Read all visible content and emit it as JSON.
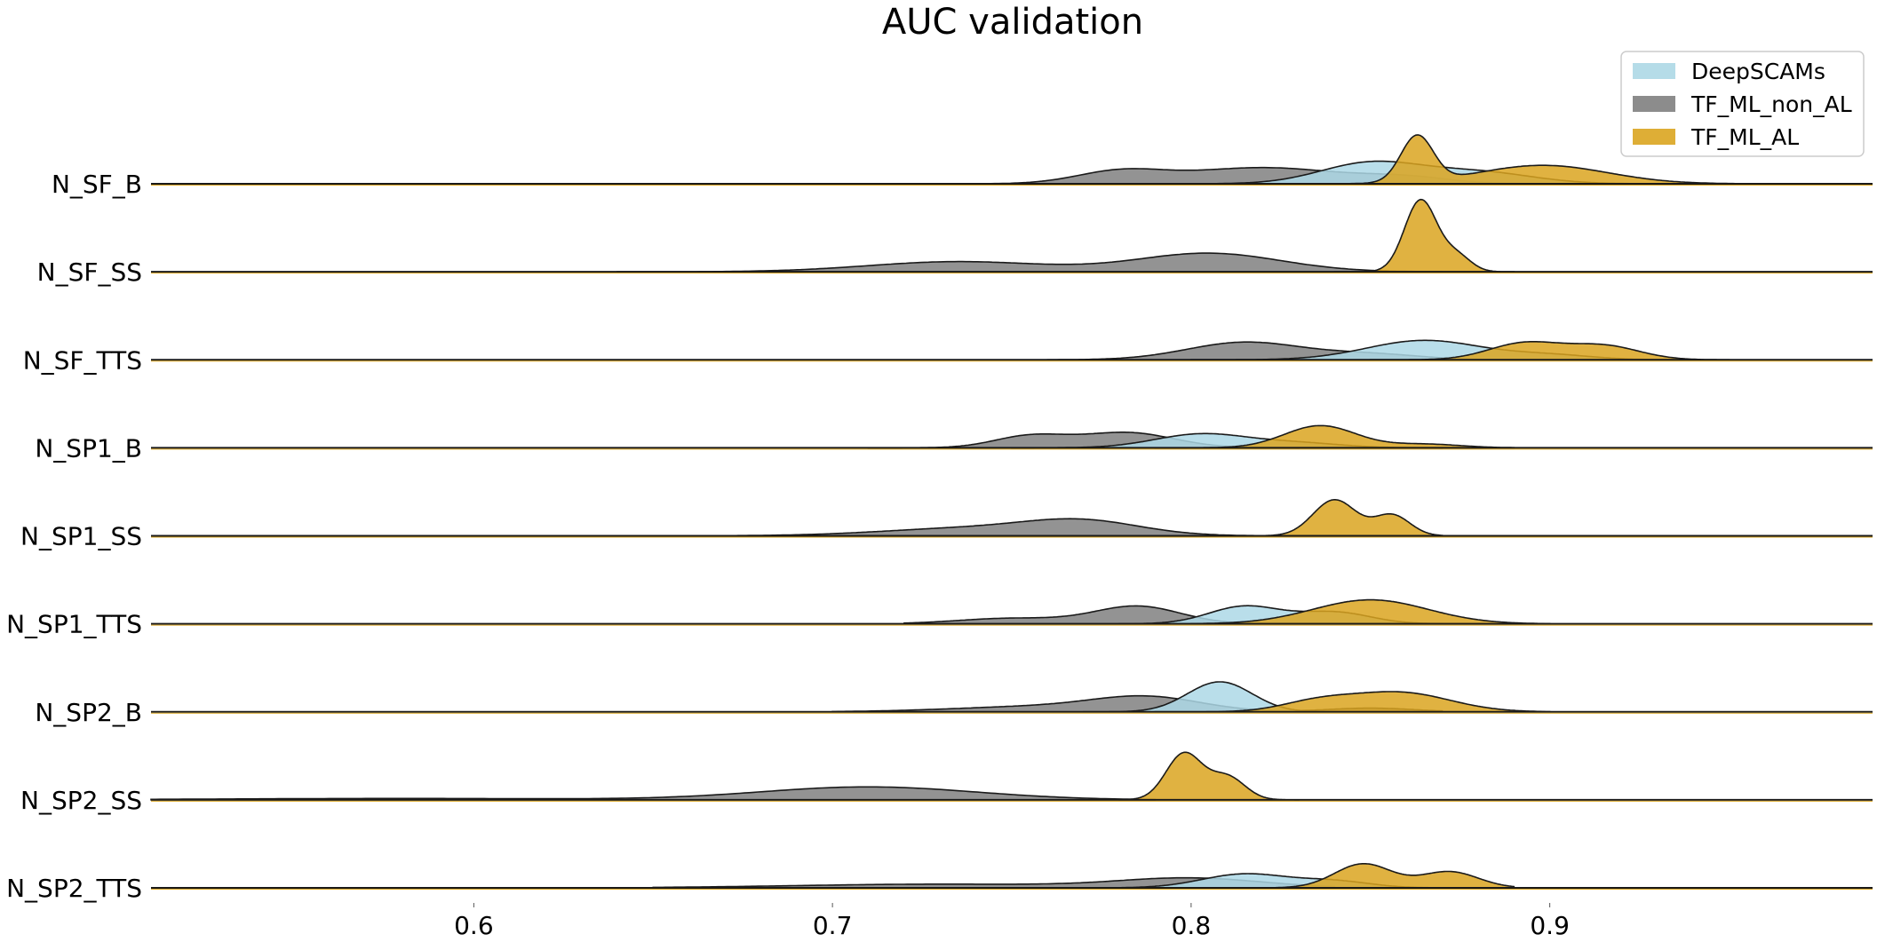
{
  "chart_data": {
    "type": "area",
    "title": "AUC validation",
    "xlabel": "",
    "ylabel": "",
    "xlim": [
      0.51,
      0.99
    ],
    "x_ticks": [
      0.6,
      0.7,
      0.8,
      0.9
    ],
    "x_tick_labels": [
      "0.6",
      "0.7",
      "0.8",
      "0.9"
    ],
    "grid": false,
    "legend_position": "top-right",
    "categories": [
      "N_SF_B",
      "N_SF_SS",
      "N_SF_TTS",
      "N_SP1_B",
      "N_SP1_SS",
      "N_SP1_TTS",
      "N_SP2_B",
      "N_SP2_SS",
      "N_SP2_TTS"
    ],
    "series": [
      {
        "name": "DeepSCAMs",
        "color": "#ADD8E6"
      },
      {
        "name": "TF_ML_non_AL",
        "color": "#808080"
      },
      {
        "name": "TF_ML_AL",
        "color": "#DAA520"
      }
    ],
    "ridges": [
      {
        "category": "N_SF_B",
        "densities": [
          {
            "series": "TF_ML_non_AL",
            "peaks": [
              [
                0.78,
                0.012,
                0.25
              ],
              [
                0.82,
                0.022,
                0.35
              ],
              [
                0.86,
                0.012,
                0.12
              ]
            ],
            "range": [
              0.67,
              0.91
            ]
          },
          {
            "series": "DeepSCAMs",
            "peaks": [
              [
                0.85,
                0.014,
                0.45
              ],
              [
                0.88,
                0.015,
                0.25
              ]
            ],
            "range": [
              0.76,
              0.93
            ]
          },
          {
            "series": "TF_ML_AL",
            "peaks": [
              [
                0.863,
                0.0045,
                1.0
              ],
              [
                0.898,
                0.018,
                0.4
              ]
            ],
            "range": [
              0.82,
              0.96
            ]
          }
        ]
      },
      {
        "category": "N_SF_SS",
        "densities": [
          {
            "series": "TF_ML_non_AL",
            "peaks": [
              [
                0.735,
                0.025,
                0.22
              ],
              [
                0.805,
                0.02,
                0.4
              ]
            ],
            "range": [
              0.64,
              0.87
            ]
          },
          {
            "series": "TF_ML_AL",
            "peaks": [
              [
                0.864,
                0.0045,
                1.55
              ],
              [
                0.874,
                0.004,
                0.35
              ]
            ],
            "range": [
              0.84,
              0.89
            ]
          }
        ]
      },
      {
        "category": "N_SF_TTS",
        "densities": [
          {
            "series": "TF_ML_non_AL",
            "peaks": [
              [
                0.815,
                0.016,
                0.38
              ],
              [
                0.85,
                0.014,
                0.12
              ]
            ],
            "range": [
              0.76,
              0.9
            ]
          },
          {
            "series": "DeepSCAMs",
            "peaks": [
              [
                0.865,
                0.016,
                0.42
              ],
              [
                0.9,
                0.012,
                0.1
              ]
            ],
            "range": [
              0.8,
              0.94
            ]
          },
          {
            "series": "TF_ML_AL",
            "peaks": [
              [
                0.893,
                0.01,
                0.36
              ],
              [
                0.915,
                0.01,
                0.3
              ]
            ],
            "range": [
              0.85,
              0.95
            ]
          }
        ]
      },
      {
        "category": "N_SP1_B",
        "densities": [
          {
            "series": "TF_ML_non_AL",
            "peaks": [
              [
                0.755,
                0.01,
                0.25
              ],
              [
                0.782,
                0.013,
                0.33
              ]
            ],
            "range": [
              0.71,
              0.83
            ]
          },
          {
            "series": "DeepSCAMs",
            "peaks": [
              [
                0.803,
                0.013,
                0.3
              ],
              [
                0.83,
                0.012,
                0.1
              ]
            ],
            "range": [
              0.75,
              0.87
            ]
          },
          {
            "series": "TF_ML_AL",
            "peaks": [
              [
                0.836,
                0.01,
                0.48
              ],
              [
                0.865,
                0.01,
                0.08
              ]
            ],
            "range": [
              0.79,
              0.89
            ]
          }
        ]
      },
      {
        "category": "N_SP1_SS",
        "densities": [
          {
            "series": "TF_ML_non_AL",
            "peaks": [
              [
                0.74,
                0.025,
                0.17
              ],
              [
                0.77,
                0.016,
                0.28
              ]
            ],
            "range": [
              0.66,
              0.82
            ]
          },
          {
            "series": "TF_ML_AL",
            "peaks": [
              [
                0.84,
                0.006,
                0.78
              ],
              [
                0.856,
                0.005,
                0.45
              ]
            ],
            "range": [
              0.82,
              0.87
            ]
          }
        ]
      },
      {
        "category": "N_SP1_TTS",
        "densities": [
          {
            "series": "TF_ML_non_AL",
            "peaks": [
              [
                0.75,
                0.015,
                0.12
              ],
              [
                0.785,
                0.012,
                0.38
              ]
            ],
            "range": [
              0.72,
              0.84
            ]
          },
          {
            "series": "DeepSCAMs",
            "peaks": [
              [
                0.815,
                0.01,
                0.38
              ],
              [
                0.84,
                0.01,
                0.25
              ]
            ],
            "range": [
              0.78,
              0.87
            ]
          },
          {
            "series": "TF_ML_AL",
            "peaks": [
              [
                0.85,
                0.016,
                0.52
              ]
            ],
            "range": [
              0.8,
              0.9
            ]
          }
        ]
      },
      {
        "category": "N_SP2_B",
        "densities": [
          {
            "series": "TF_ML_non_AL",
            "peaks": [
              [
                0.76,
                0.025,
                0.12
              ],
              [
                0.788,
                0.015,
                0.28
              ],
              [
                0.85,
                0.012,
                0.08
              ]
            ],
            "range": [
              0.7,
              0.87
            ]
          },
          {
            "series": "DeepSCAMs",
            "peaks": [
              [
                0.808,
                0.009,
                0.65
              ]
            ],
            "range": [
              0.77,
              0.86
            ]
          },
          {
            "series": "TF_ML_AL",
            "peaks": [
              [
                0.835,
                0.01,
                0.2
              ],
              [
                0.858,
                0.014,
                0.42
              ]
            ],
            "range": [
              0.79,
              0.9
            ]
          }
        ]
      },
      {
        "category": "N_SP2_SS",
        "densities": [
          {
            "series": "TF_ML_non_AL",
            "peaks": [
              [
                0.58,
                0.05,
                0.03
              ],
              [
                0.71,
                0.03,
                0.28
              ]
            ],
            "range": [
              0.51,
              0.79
            ]
          },
          {
            "series": "TF_ML_AL",
            "peaks": [
              [
                0.798,
                0.005,
                1.0
              ],
              [
                0.81,
                0.005,
                0.5
              ]
            ],
            "range": [
              0.78,
              0.83
            ]
          }
        ]
      },
      {
        "category": "N_SP2_TTS",
        "densities": [
          {
            "series": "TF_ML_non_AL",
            "peaks": [
              [
                0.73,
                0.04,
                0.08
              ],
              [
                0.8,
                0.02,
                0.2
              ]
            ],
            "range": [
              0.65,
              0.84
            ]
          },
          {
            "series": "DeepSCAMs",
            "peaks": [
              [
                0.815,
                0.012,
                0.3
              ],
              [
                0.84,
                0.01,
                0.14
              ]
            ],
            "range": [
              0.78,
              0.87
            ]
          },
          {
            "series": "TF_ML_AL",
            "peaks": [
              [
                0.848,
                0.008,
                0.52
              ],
              [
                0.872,
                0.008,
                0.35
              ]
            ],
            "range": [
              0.82,
              0.89
            ]
          }
        ]
      }
    ]
  }
}
